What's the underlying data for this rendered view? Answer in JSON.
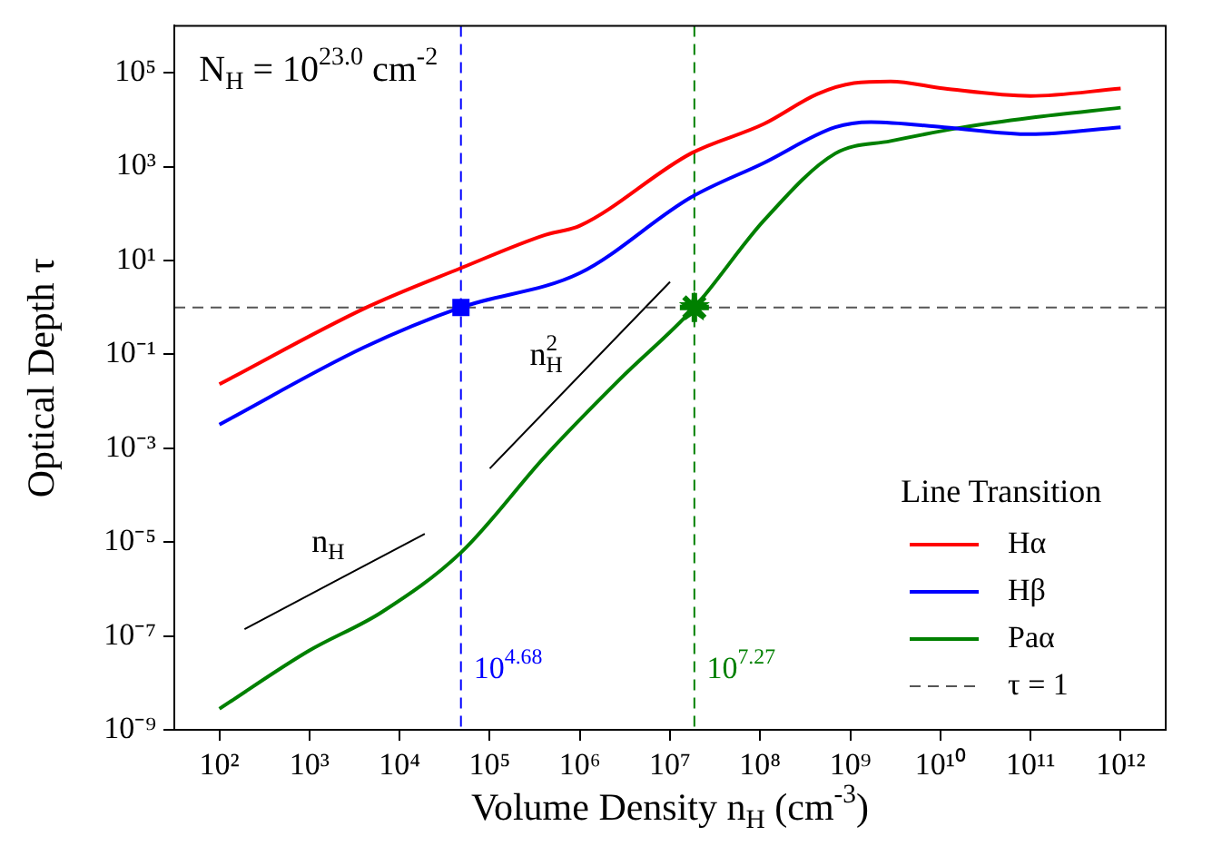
{
  "chart_data": {
    "type": "line",
    "xlabel": "Volume Density n$_{H}$ (cm$^{-3}$)",
    "ylabel": "Optical Depth τ",
    "legend_title": "Line Transition",
    "legend": "bottom right",
    "log": "xy",
    "marker": "none",
    "line_style": "solid",
    "xlim": [
      31.6,
      3160000000000.0
    ],
    "ylim": [
      1e-09,
      1000000.0
    ],
    "xticks": [
      {
        "value": 100.0,
        "label": "10²"
      },
      {
        "value": 1000.0,
        "label": "10³"
      },
      {
        "value": 10000.0,
        "label": "10⁴"
      },
      {
        "value": 100000.0,
        "label": "10⁵"
      },
      {
        "value": 1000000.0,
        "label": "10⁶"
      },
      {
        "value": 10000000.0,
        "label": "10⁷"
      },
      {
        "value": 100000000.0,
        "label": "10⁸"
      },
      {
        "value": 1000000000.0,
        "label": "10⁹"
      },
      {
        "value": 10000000000.0,
        "label": "10¹⁰"
      },
      {
        "value": 100000000000.0,
        "label": "10¹¹"
      },
      {
        "value": 1000000000000.0,
        "label": "10¹²"
      }
    ],
    "yticks": [
      {
        "value": 1e-09,
        "label": "10⁻⁹"
      },
      {
        "value": 1e-07,
        "label": "10⁻⁷"
      },
      {
        "value": 1e-05,
        "label": "10⁻⁵"
      },
      {
        "value": 0.001,
        "label": "10⁻³"
      },
      {
        "value": 0.1,
        "label": "10⁻¹"
      },
      {
        "value": 10,
        "label": "10¹"
      },
      {
        "value": 1000.0,
        "label": "10³"
      },
      {
        "value": 100000.0,
        "label": "10⁵"
      }
    ],
    "series": [
      {
        "name": "Hα",
        "color": "#ff0000",
        "x": [
          100.0,
          4300.0,
          48000.0,
          410000.0,
          1000000.0,
          17000000.0,
          110000000.0,
          430000000.0,
          1100000000.0,
          2800000000.0,
          11000000000.0,
          100000000000.0,
          1000000000000.0
        ],
        "values": [
          0.023,
          1.0,
          6.9,
          35,
          55,
          1900.0,
          8100.0,
          35000.0,
          60000.0,
          65000.0,
          46000.0,
          32000.0,
          46000.0
        ]
      },
      {
        "name": "Hβ",
        "color": "#0000ff",
        "x": [
          100.0,
          4000.0,
          48000.0,
          1000000.0,
          17000000.0,
          110000000.0,
          680000000.0,
          1700000000.0,
          11000000000.0,
          100000000000.0,
          1000000000000.0
        ],
        "values": [
          0.0032,
          0.14,
          1.0,
          5.4,
          220,
          1200.0,
          6900.0,
          8900.0,
          6900.0,
          4900.0,
          6900.0
        ]
      },
      {
        "name": "Paα",
        "color": "#008000",
        "x": [
          100.0,
          980.0,
          6300.0,
          48000.0,
          430000.0,
          2800000.0,
          18600000.0,
          110000000.0,
          680000000.0,
          2800000000.0,
          18000000000.0,
          100000000000.0,
          1000000000000.0
        ],
        "values": [
          2.8e-09,
          4.8e-08,
          3.2e-07,
          6e-06,
          0.00074,
          0.03,
          1.0,
          71,
          1900.0,
          3500.0,
          6900.0,
          11000.0,
          18000.0
        ]
      },
      {
        "type": "line",
        "color": "#000000",
        "x": [
          190.0,
          19000.0
        ],
        "values": [
          1.4e-07,
          1.5e-05
        ]
      },
      {
        "type": "line",
        "color": "#000000",
        "x": [
          100000.0,
          10000000.0
        ],
        "values": [
          0.00037,
          3.5
        ]
      },
      {
        "type": "scatter",
        "color": "#0000ff",
        "marker": "square",
        "x": [
          47863
        ],
        "values": [
          1
        ]
      },
      {
        "type": "scatter",
        "color": "#008000",
        "marker": "star",
        "x": [
          18620871
        ],
        "values": [
          1
        ]
      }
    ],
    "ref_lines": [
      {
        "axis": "x",
        "value": 47863,
        "color": "#0000ff",
        "line_style": "dashed"
      },
      {
        "axis": "x",
        "value": 18620871,
        "color": "#008000",
        "line_style": "dashed"
      },
      {
        "axis": "y",
        "value": 1,
        "label": "τ = 1",
        "color": "#555555",
        "line_style": "dashed"
      }
    ],
    "annotations": [
      "N$_{H}$ = 10$^{23.0}$ cm$^{-2}$",
      "n$_{H}$",
      "n$_{H}$$^{2}$",
      "10$^{4.68}$",
      "10$^{7.27}$"
    ]
  }
}
